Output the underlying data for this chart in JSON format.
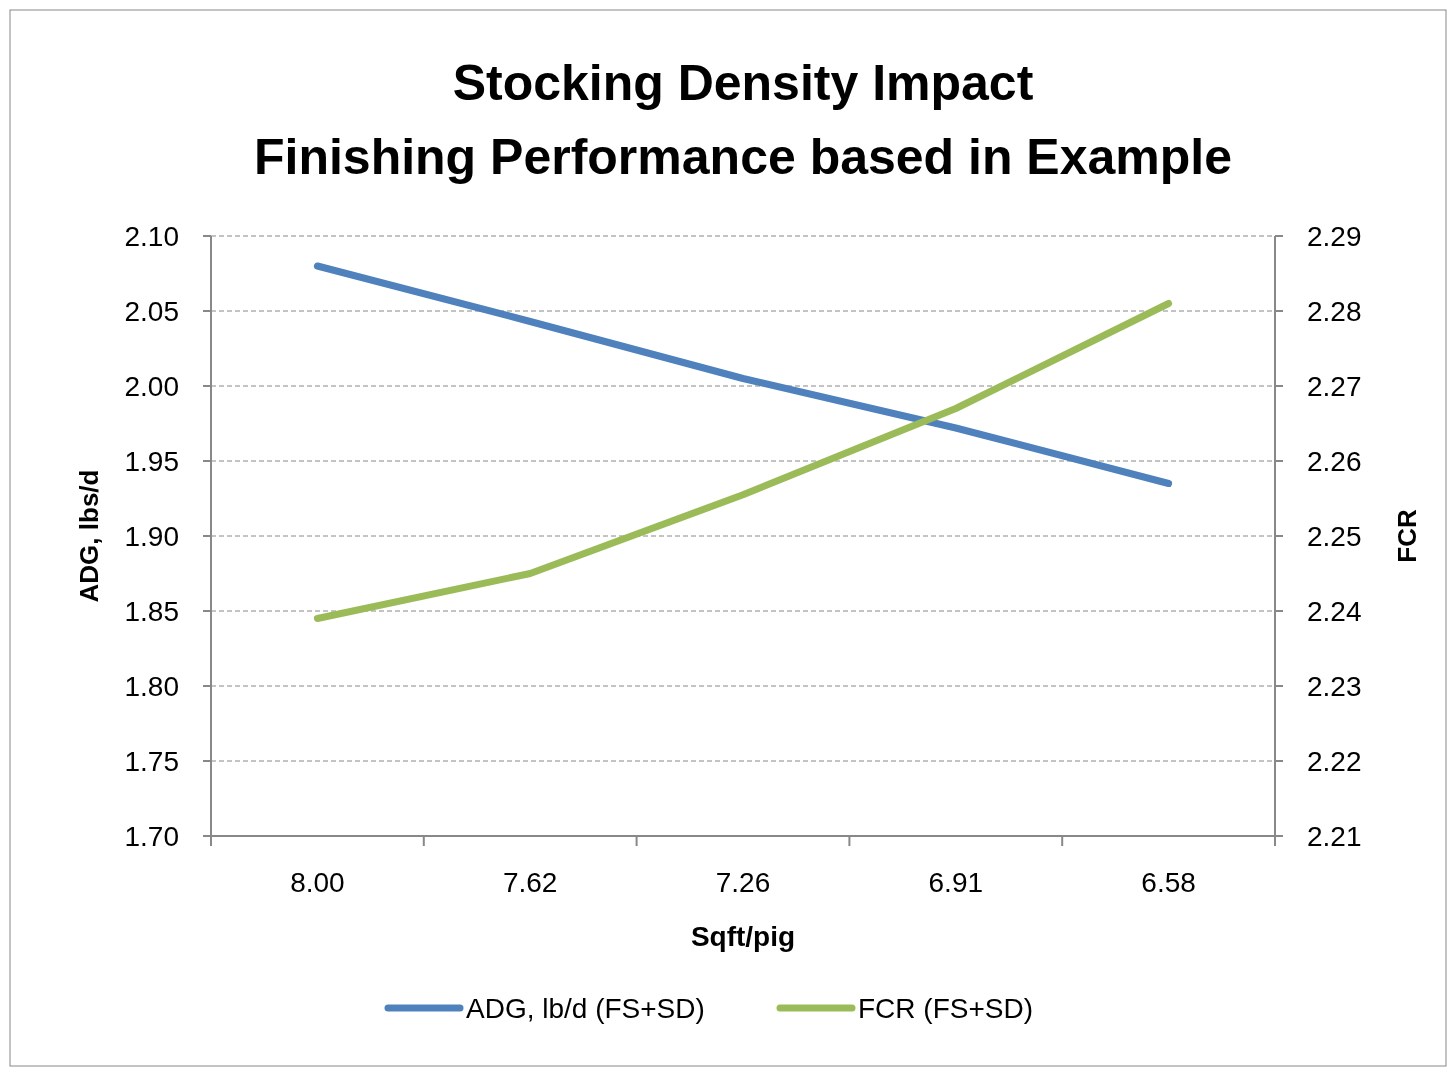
{
  "chart_data": {
    "type": "line",
    "title": "Stocking Density Impact",
    "subtitle": "Finishing Performance based in Example",
    "xlabel": "Sqft/pig",
    "ylabel": "ADG, lbs/d",
    "y2label": "FCR",
    "categories": [
      "8.00",
      "7.62",
      "7.26",
      "6.91",
      "6.58"
    ],
    "series": [
      {
        "name": "ADG, lb/d (FS+SD)",
        "color": "#4f81bd",
        "values": [
          2.08,
          2.043,
          2.005,
          1.972,
          1.935
        ]
      },
      {
        "name": "FCR (FS+SD)",
        "color": "#9bbb59",
        "axis": "y2",
        "values": [
          2.239,
          2.245,
          2.2555,
          2.267,
          2.281
        ]
      }
    ],
    "ylim": [
      1.7,
      2.1
    ],
    "yticks": [
      {
        "value": 1.7,
        "label": "1.70"
      },
      {
        "value": 1.75,
        "label": "1.75"
      },
      {
        "value": 1.8,
        "label": "1.80"
      },
      {
        "value": 1.85,
        "label": "1.85"
      },
      {
        "value": 1.9,
        "label": "1.90"
      },
      {
        "value": 1.95,
        "label": "1.95"
      },
      {
        "value": 2.0,
        "label": "2.00"
      },
      {
        "value": 2.05,
        "label": "2.05"
      },
      {
        "value": 2.1,
        "label": "2.10"
      }
    ],
    "y2lim": [
      2.21,
      2.29
    ],
    "y2ticks": [
      2.21,
      2.22,
      2.23,
      2.24,
      2.25,
      2.26,
      2.27,
      2.28,
      2.29
    ],
    "grid": "y",
    "legend": "bottom",
    "marker": "none",
    "line_style": "solid"
  }
}
